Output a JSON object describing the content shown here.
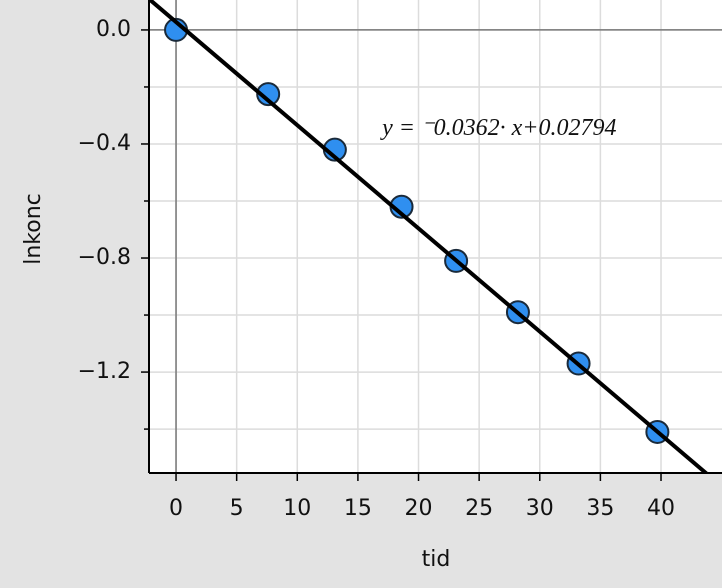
{
  "chart_data": {
    "type": "scatter",
    "x_label": "tid",
    "y_label": "lnkonc",
    "x": [
      0,
      7.6,
      13.1,
      18.6,
      23.1,
      28.2,
      33.2,
      39.7
    ],
    "values": [
      0,
      -0.225,
      -0.42,
      -0.62,
      -0.81,
      -0.99,
      -1.17,
      -1.41
    ],
    "color": "#2f8ff0",
    "xlim": [
      -2.23,
      45.03
    ],
    "ylim": [
      -1.554,
      0.105
    ],
    "xticks": [
      0,
      5,
      10,
      15,
      20,
      25,
      30,
      35,
      40
    ],
    "yticks": [
      {
        "value": 0,
        "label": "0.0"
      },
      {
        "value": -0.4,
        "label": "−0.4"
      },
      {
        "value": -0.8,
        "label": "−0.8"
      },
      {
        "value": -1.2,
        "label": "−1.2"
      }
    ],
    "yminorticks": [
      -0.2,
      -0.6,
      -1.0,
      -1.4
    ],
    "grid": true,
    "fit": {
      "slope": -0.0362,
      "intercept": 0.02794,
      "label": "y = ⁻0.0362· x+0.02794",
      "label_x": 17,
      "label_y": -0.35
    }
  }
}
